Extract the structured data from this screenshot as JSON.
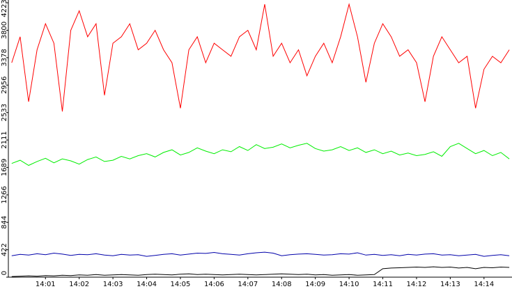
{
  "chart_data": {
    "type": "line",
    "x": [
      0,
      0.25,
      0.5,
      0.75,
      1,
      1.25,
      1.5,
      1.75,
      2,
      2.25,
      2.5,
      2.75,
      3,
      3.25,
      3.5,
      3.75,
      4,
      4.25,
      4.5,
      4.75,
      5,
      5.25,
      5.5,
      5.75,
      6,
      6.25,
      6.5,
      6.75,
      7,
      7.25,
      7.5,
      7.75,
      8,
      8.25,
      8.5,
      8.75,
      9,
      9.25,
      9.5,
      9.75,
      10,
      10.25,
      10.5,
      10.75,
      11,
      11.25,
      11.5,
      11.75,
      12,
      12.25,
      12.5,
      12.75,
      13,
      13.25,
      13.5,
      13.75,
      14,
      14.25,
      14.5,
      14.75
    ],
    "series": [
      {
        "color": "#ff0000",
        "values": [
          3300,
          3700,
          2700,
          3500,
          3900,
          3600,
          2550,
          3800,
          4100,
          3700,
          3900,
          2800,
          3600,
          3700,
          3900,
          3500,
          3600,
          3800,
          3500,
          3300,
          2600,
          3500,
          3700,
          3300,
          3600,
          3500,
          3400,
          3700,
          3800,
          3500,
          4200,
          3400,
          3600,
          3300,
          3500,
          3100,
          3400,
          3600,
          3300,
          3700,
          4200,
          3700,
          3000,
          3600,
          3900,
          3700,
          3400,
          3500,
          3300,
          2700,
          3400,
          3700,
          3500,
          3300,
          3400,
          2600,
          3200,
          3400,
          3300,
          3500
        ]
      },
      {
        "color": "#00ee00",
        "values": [
          1750,
          1800,
          1720,
          1780,
          1830,
          1760,
          1820,
          1790,
          1740,
          1810,
          1850,
          1780,
          1800,
          1860,
          1820,
          1870,
          1900,
          1850,
          1920,
          1960,
          1880,
          1920,
          1990,
          1940,
          1900,
          1960,
          1930,
          2010,
          1950,
          2040,
          1980,
          2000,
          2050,
          1990,
          2030,
          2060,
          1980,
          1940,
          1960,
          2010,
          1950,
          1990,
          1920,
          1960,
          1900,
          1940,
          1880,
          1910,
          1870,
          1890,
          1930,
          1860,
          2010,
          2060,
          1980,
          1900,
          1950,
          1870,
          1920,
          1820
        ]
      },
      {
        "color": "#0000aa",
        "values": [
          330,
          350,
          340,
          360,
          345,
          370,
          355,
          335,
          350,
          345,
          360,
          340,
          330,
          350,
          340,
          345,
          320,
          335,
          350,
          360,
          340,
          355,
          370,
          365,
          380,
          360,
          350,
          340,
          360,
          375,
          385,
          370,
          330,
          345,
          355,
          360,
          350,
          340,
          345,
          360,
          355,
          375,
          340,
          350,
          335,
          345,
          330,
          350,
          340,
          355,
          360,
          340,
          345,
          330,
          340,
          350,
          320,
          335,
          345,
          330
        ]
      },
      {
        "color": "#000000",
        "values": [
          10,
          15,
          20,
          15,
          25,
          20,
          30,
          25,
          35,
          30,
          40,
          30,
          35,
          40,
          35,
          30,
          40,
          45,
          40,
          35,
          45,
          50,
          40,
          45,
          40,
          35,
          40,
          45,
          40,
          35,
          40,
          45,
          50,
          45,
          40,
          45,
          35,
          40,
          30,
          35,
          40,
          30,
          35,
          40,
          130,
          140,
          145,
          150,
          155,
          150,
          160,
          150,
          155,
          140,
          150,
          130,
          150,
          145,
          155,
          150
        ]
      }
    ],
    "xlim": [
      -0.1,
      14.83
    ],
    "xticks": [
      {
        "value": 1,
        "label": "14:01"
      },
      {
        "value": 2,
        "label": "14:02"
      },
      {
        "value": 3,
        "label": "14:03"
      },
      {
        "value": 4,
        "label": "14:04"
      },
      {
        "value": 5,
        "label": "14:05"
      },
      {
        "value": 6,
        "label": "14:06"
      },
      {
        "value": 7,
        "label": "14:07"
      },
      {
        "value": 8,
        "label": "14:08"
      },
      {
        "value": 9,
        "label": "14:09"
      },
      {
        "value": 10,
        "label": "14:10"
      },
      {
        "value": 11,
        "label": "14:11"
      },
      {
        "value": 12,
        "label": "14:12"
      },
      {
        "value": 13,
        "label": "14:13"
      },
      {
        "value": 14,
        "label": "14:14"
      }
    ],
    "ylim": [
      0,
      4223
    ],
    "yticks": [
      0,
      422,
      844,
      1266,
      1689,
      2111,
      2533,
      2956,
      3378,
      3800,
      4223
    ]
  }
}
